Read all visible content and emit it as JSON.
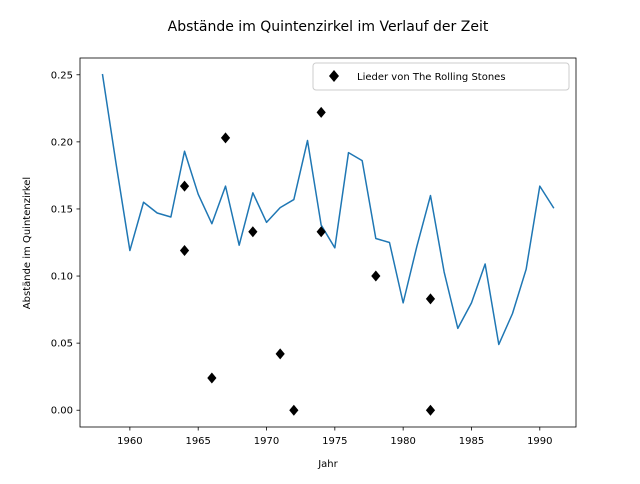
{
  "chart_data": {
    "type": "line",
    "title": "Abstände im Quintenzirkel im Verlauf der Zeit",
    "xlabel": "Jahr",
    "ylabel": "Abstände im Quintenzirkel",
    "xlim": [
      1956.35,
      1992.65
    ],
    "ylim": [
      -0.0125,
      0.2625
    ],
    "x_ticks": [
      1960,
      1965,
      1970,
      1975,
      1980,
      1985,
      1990
    ],
    "y_ticks": [
      0.0,
      0.05,
      0.1,
      0.15,
      0.2,
      0.25
    ],
    "x_tick_labels": [
      "1960",
      "1965",
      "1970",
      "1975",
      "1980",
      "1985",
      "1990"
    ],
    "y_tick_labels": [
      "0.00",
      "0.05",
      "0.10",
      "0.15",
      "0.20",
      "0.25"
    ],
    "grid": false,
    "legend_position": "top-right",
    "series": [
      {
        "kind": "line",
        "color": "#1f77b4",
        "x": [
          1958,
          1959,
          1960,
          1961,
          1962,
          1963,
          1964,
          1965,
          1966,
          1967,
          1968,
          1969,
          1970,
          1971,
          1972,
          1973,
          1974,
          1975,
          1976,
          1977,
          1978,
          1979,
          1980,
          1981,
          1982,
          1983,
          1984,
          1985,
          1986,
          1987,
          1988,
          1989,
          1990,
          1991
        ],
        "y": [
          0.25,
          0.183,
          0.119,
          0.155,
          0.147,
          0.144,
          0.193,
          0.161,
          0.139,
          0.167,
          0.123,
          0.162,
          0.14,
          0.151,
          0.157,
          0.201,
          0.138,
          0.121,
          0.192,
          0.186,
          0.128,
          0.125,
          0.08,
          0.122,
          0.16,
          0.103,
          0.061,
          0.08,
          0.109,
          0.049,
          0.072,
          0.105,
          0.167,
          0.151
        ]
      },
      {
        "kind": "scatter",
        "name": "Lieder von The Rolling Stones",
        "color": "#000000",
        "marker": "diamond",
        "x": [
          1964,
          1964,
          1966,
          1967,
          1969,
          1971,
          1972,
          1974,
          1974,
          1978,
          1982,
          1982
        ],
        "y": [
          0.167,
          0.119,
          0.024,
          0.203,
          0.133,
          0.042,
          0.0,
          0.222,
          0.133,
          0.1,
          0.083,
          0.0
        ]
      }
    ]
  }
}
